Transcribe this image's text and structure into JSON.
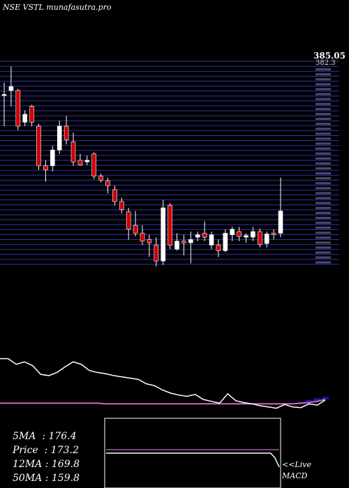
{
  "header": {
    "title": "NSE VSTL munafasutra.pro"
  },
  "price_axis": {
    "top_label": "385.05",
    "second_label": "382.3"
  },
  "stats": [
    {
      "label": "5MA ",
      "value": "176.4"
    },
    {
      "label": "Price ",
      "value": "173.2"
    },
    {
      "label": "12MA",
      "value": "169.8"
    },
    {
      "label": "50MA",
      "value": "159.8"
    }
  ],
  "live_label": "<<Live",
  "macd_label": "MACD",
  "colors": {
    "bull": "#ffffff",
    "bear": "#cc0000",
    "grid": "#3333aa",
    "ma_line": "#ffffff",
    "macd_signal": "#cc66cc",
    "macd_fill": "#1a1aa0"
  },
  "chart_data": {
    "type": "candlestick",
    "title": "NSE VSTL munafasutra.pro",
    "ylim": [
      130,
      385
    ],
    "candles": [
      {
        "o": 345,
        "h": 360,
        "l": 305,
        "c": 345,
        "dir": "up"
      },
      {
        "o": 350,
        "h": 380,
        "l": 330,
        "c": 355,
        "dir": "up"
      },
      {
        "o": 350,
        "h": 352,
        "l": 300,
        "c": 305,
        "dir": "down"
      },
      {
        "o": 310,
        "h": 325,
        "l": 305,
        "c": 320,
        "dir": "up"
      },
      {
        "o": 330,
        "h": 332,
        "l": 305,
        "c": 310,
        "dir": "down"
      },
      {
        "o": 305,
        "h": 308,
        "l": 250,
        "c": 255,
        "dir": "down"
      },
      {
        "o": 250,
        "h": 262,
        "l": 235,
        "c": 255,
        "dir": "down"
      },
      {
        "o": 255,
        "h": 280,
        "l": 248,
        "c": 275,
        "dir": "up"
      },
      {
        "o": 275,
        "h": 312,
        "l": 270,
        "c": 305,
        "dir": "up"
      },
      {
        "o": 305,
        "h": 318,
        "l": 282,
        "c": 288,
        "dir": "down"
      },
      {
        "o": 285,
        "h": 297,
        "l": 255,
        "c": 260,
        "dir": "down"
      },
      {
        "o": 262,
        "h": 270,
        "l": 255,
        "c": 256,
        "dir": "down"
      },
      {
        "o": 260,
        "h": 268,
        "l": 256,
        "c": 262,
        "dir": "up"
      },
      {
        "o": 270,
        "h": 272,
        "l": 238,
        "c": 242,
        "dir": "down"
      },
      {
        "o": 242,
        "h": 245,
        "l": 234,
        "c": 237,
        "dir": "down"
      },
      {
        "o": 236,
        "h": 240,
        "l": 220,
        "c": 230,
        "dir": "down"
      },
      {
        "o": 225,
        "h": 230,
        "l": 205,
        "c": 210,
        "dir": "down"
      },
      {
        "o": 210,
        "h": 215,
        "l": 195,
        "c": 200,
        "dir": "down"
      },
      {
        "o": 197,
        "h": 202,
        "l": 162,
        "c": 175,
        "dir": "down"
      },
      {
        "o": 180,
        "h": 198,
        "l": 166,
        "c": 170,
        "dir": "down"
      },
      {
        "o": 170,
        "h": 180,
        "l": 155,
        "c": 160,
        "dir": "down"
      },
      {
        "o": 162,
        "h": 168,
        "l": 140,
        "c": 158,
        "dir": "down"
      },
      {
        "o": 155,
        "h": 165,
        "l": 128,
        "c": 135,
        "dir": "down"
      },
      {
        "o": 135,
        "h": 212,
        "l": 130,
        "c": 202,
        "dir": "up"
      },
      {
        "o": 205,
        "h": 208,
        "l": 150,
        "c": 155,
        "dir": "down"
      },
      {
        "o": 150,
        "h": 170,
        "l": 148,
        "c": 160,
        "dir": "up"
      },
      {
        "o": 160,
        "h": 168,
        "l": 142,
        "c": 158,
        "dir": "down"
      },
      {
        "o": 158,
        "h": 172,
        "l": 132,
        "c": 162,
        "dir": "up"
      },
      {
        "o": 165,
        "h": 172,
        "l": 160,
        "c": 168,
        "dir": "up"
      },
      {
        "o": 165,
        "h": 185,
        "l": 160,
        "c": 170,
        "dir": "down"
      },
      {
        "o": 168,
        "h": 172,
        "l": 150,
        "c": 155,
        "dir": "up"
      },
      {
        "o": 155,
        "h": 162,
        "l": 140,
        "c": 148,
        "dir": "down"
      },
      {
        "o": 148,
        "h": 175,
        "l": 146,
        "c": 170,
        "dir": "up"
      },
      {
        "o": 168,
        "h": 178,
        "l": 160,
        "c": 175,
        "dir": "up"
      },
      {
        "o": 172,
        "h": 178,
        "l": 160,
        "c": 166,
        "dir": "down"
      },
      {
        "o": 165,
        "h": 170,
        "l": 158,
        "c": 167,
        "dir": "up"
      },
      {
        "o": 165,
        "h": 178,
        "l": 160,
        "c": 172,
        "dir": "up"
      },
      {
        "o": 172,
        "h": 176,
        "l": 152,
        "c": 156,
        "dir": "down"
      },
      {
        "o": 157,
        "h": 172,
        "l": 152,
        "c": 169,
        "dir": "up"
      },
      {
        "o": 170,
        "h": 175,
        "l": 162,
        "c": 168,
        "dir": "down"
      },
      {
        "o": 170,
        "h": 240,
        "l": 165,
        "c": 198,
        "dir": "up"
      }
    ],
    "indicator": {
      "ma_line": [
        95,
        95,
        86,
        90,
        84,
        70,
        68,
        73,
        82,
        90,
        86,
        76,
        73,
        71,
        68,
        66,
        64,
        62,
        55,
        52,
        45,
        40,
        37,
        35,
        38,
        30,
        27,
        24,
        39,
        28,
        25,
        23,
        20,
        18,
        16,
        22,
        18,
        17,
        23,
        21,
        29
      ],
      "signal_line": [
        24,
        24,
        24,
        24,
        24,
        24,
        24,
        24,
        24,
        24,
        24,
        24,
        24,
        23,
        23,
        23,
        23,
        23,
        23,
        23,
        23,
        23,
        23,
        23,
        23,
        23,
        23,
        23,
        23,
        23,
        23,
        23,
        23,
        23,
        23,
        23,
        23,
        24,
        25,
        27,
        30
      ],
      "histogram": [
        0,
        0,
        0,
        0,
        0,
        0,
        0,
        0,
        0,
        0,
        0,
        0,
        0,
        0,
        0,
        0,
        0,
        0,
        0,
        0,
        0,
        0,
        0,
        0,
        0,
        0,
        0,
        0,
        0,
        0,
        0,
        0,
        0,
        0,
        0,
        0,
        0,
        2,
        4,
        5,
        4
      ],
      "ylim": [
        0,
        100
      ]
    },
    "macd_inset": {
      "values": [
        50,
        50,
        50,
        50,
        50,
        50,
        50,
        50,
        50,
        50,
        50,
        50,
        50,
        50,
        50,
        50,
        50,
        50,
        50,
        50,
        50,
        50,
        50,
        50,
        50,
        50,
        50,
        50,
        50,
        50,
        50,
        50,
        50,
        50,
        50,
        50,
        50,
        50,
        50,
        42,
        25
      ],
      "ylim": [
        0,
        100
      ]
    }
  }
}
